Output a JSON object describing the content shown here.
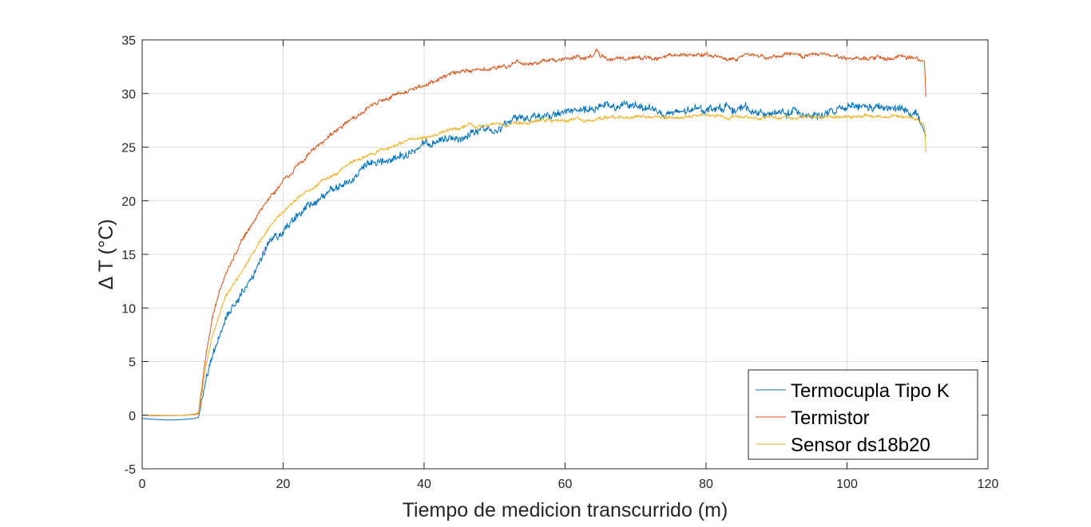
{
  "chart_data": {
    "type": "line",
    "title": "",
    "xlabel": "Tiempo de medicion transcurrido (m)",
    "ylabel": "Δ T (°C)",
    "xlim": [
      0,
      120
    ],
    "ylim": [
      -5,
      35
    ],
    "xticks": [
      0,
      20,
      40,
      60,
      80,
      100,
      120
    ],
    "yticks": [
      -5,
      0,
      5,
      10,
      15,
      20,
      25,
      30,
      35
    ],
    "grid": true,
    "legend_position": "bottom-right",
    "series": [
      {
        "name": "Termocupla Tipo K",
        "color": "#0072BD",
        "noise": 0.55,
        "x": [
          0,
          2,
          4,
          6,
          7.5,
          8,
          9,
          10,
          11,
          12,
          13,
          14,
          16,
          18,
          20,
          22,
          24,
          26,
          28,
          30,
          32,
          34,
          36,
          38,
          40,
          42,
          44,
          46,
          48,
          50,
          52,
          54,
          56,
          58,
          60,
          62,
          64,
          66,
          68,
          70,
          72,
          74,
          76,
          78,
          80,
          82,
          84,
          86,
          88,
          90,
          92,
          94,
          96,
          98,
          100,
          102,
          104,
          106,
          108,
          110,
          111.2
        ],
        "y": [
          -0.3,
          -0.4,
          -0.45,
          -0.4,
          -0.3,
          -0.2,
          3.0,
          5.5,
          7.5,
          9.2,
          10.5,
          11.5,
          13.5,
          15.8,
          17.3,
          18.5,
          19.6,
          20.5,
          21.3,
          22.1,
          22.9,
          23.5,
          24.0,
          24.5,
          25.0,
          25.4,
          25.8,
          26.2,
          26.6,
          27.0,
          27.3,
          27.7,
          28.0,
          28.1,
          28.2,
          28.3,
          28.5,
          28.6,
          28.7,
          28.8,
          28.8,
          28.0,
          28.1,
          28.3,
          28.6,
          28.7,
          28.8,
          28.5,
          28.2,
          28.0,
          28.2,
          28.3,
          28.1,
          28.2,
          28.5,
          28.6,
          28.6,
          28.5,
          28.4,
          28.2,
          26.0
        ]
      },
      {
        "name": "Termistor",
        "color": "#D95319",
        "noise": 0.3,
        "x": [
          0,
          2,
          4,
          6,
          7.5,
          8,
          9,
          10,
          11,
          12,
          13,
          14,
          16,
          18,
          20,
          22,
          24,
          26,
          28,
          30,
          32,
          34,
          36,
          38,
          40,
          42,
          44,
          46,
          48,
          50,
          52,
          54,
          56,
          58,
          60,
          62,
          64,
          64.5,
          65,
          66,
          68,
          70,
          75,
          80,
          85,
          90,
          95,
          100,
          105,
          110,
          111,
          111.2
        ],
        "y": [
          0.0,
          -0.05,
          -0.05,
          0.0,
          0.1,
          0.2,
          5.5,
          9.0,
          11.5,
          13.5,
          14.8,
          16.0,
          18.3,
          20.2,
          21.8,
          23.2,
          24.6,
          25.8,
          26.8,
          27.7,
          28.5,
          29.3,
          29.9,
          30.4,
          30.9,
          31.3,
          31.7,
          32.0,
          32.2,
          32.5,
          32.7,
          32.9,
          33.0,
          33.1,
          33.2,
          33.3,
          33.4,
          34.3,
          33.5,
          33.3,
          33.4,
          33.4,
          33.5,
          33.5,
          33.5,
          33.5,
          33.5,
          33.4,
          33.3,
          33.3,
          33.0,
          29.7
        ]
      },
      {
        "name": "Sensor ds18b20",
        "color": "#EDB120",
        "noise": 0.25,
        "x": [
          0,
          2,
          4,
          6,
          7.5,
          8,
          9,
          10,
          11,
          12,
          13,
          14,
          16,
          18,
          20,
          22,
          24,
          26,
          28,
          30,
          32,
          34,
          36,
          38,
          40,
          42,
          44,
          46,
          48,
          50,
          52,
          54,
          56,
          58,
          60,
          62,
          64,
          66,
          68,
          70,
          75,
          80,
          85,
          90,
          95,
          100,
          105,
          110,
          111,
          111.2
        ],
        "y": [
          0.0,
          0.0,
          -0.05,
          0.0,
          0.05,
          0.1,
          4.5,
          7.5,
          9.5,
          11.2,
          12.3,
          13.3,
          15.3,
          17.5,
          19.0,
          20.2,
          21.1,
          22.0,
          22.8,
          23.6,
          24.3,
          24.8,
          25.2,
          25.6,
          25.9,
          26.3,
          26.6,
          26.9,
          27.0,
          27.1,
          27.2,
          27.3,
          27.4,
          27.4,
          27.5,
          27.5,
          27.5,
          27.6,
          27.7,
          27.7,
          27.8,
          27.9,
          27.9,
          27.8,
          27.9,
          27.9,
          27.9,
          27.7,
          27.0,
          24.5
        ]
      }
    ]
  }
}
